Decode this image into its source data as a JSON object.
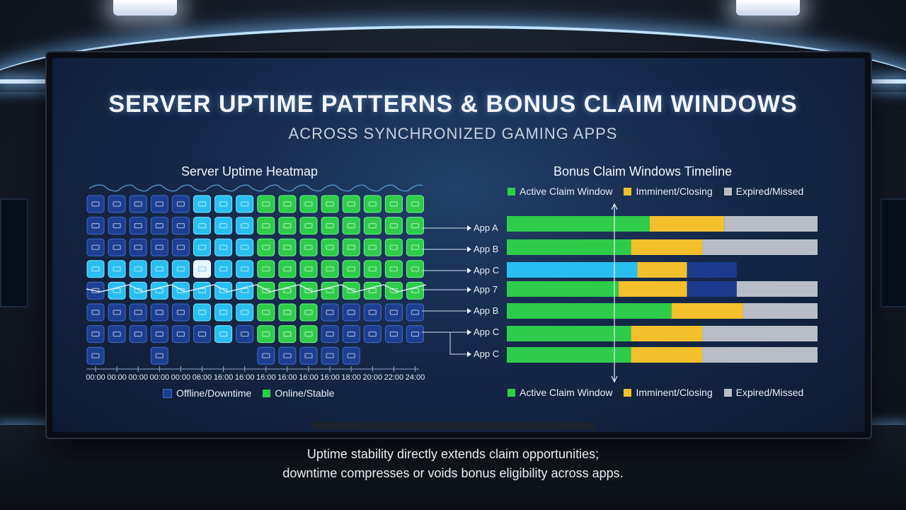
{
  "title": "Server Uptime Patterns & Bonus Claim Windows",
  "subtitle": "Across Synchronized Gaming Apps",
  "caption_line1": "Uptime stability directly extends claim opportunities;",
  "caption_line2": "downtime compresses or voids bonus eligibility across apps.",
  "colors": {
    "online": "#2ecc4a",
    "offline": "#1d3f8f",
    "cyan": "#28bff0",
    "active": "#2ecc4a",
    "imminent": "#f3c02b",
    "expired": "#b9bec6",
    "downtime_band": "#1b3a8e"
  },
  "chart_data": [
    {
      "type": "heatmap",
      "title": "Server Uptime Heatmap",
      "x_tick_labels": [
        "00:00",
        "00:00",
        "00:00",
        "00:00",
        "00:00",
        "06:00",
        "16:00",
        "16:00",
        "16:00",
        "16:00",
        "16:00",
        "16:00",
        "18:00",
        "20:00",
        "22:00",
        "24:00"
      ],
      "cell_legend": [
        "offline",
        "cyan",
        "online"
      ],
      "rows": [
        [
          "offline",
          "offline",
          "offline",
          "offline",
          "offline",
          "cyan",
          "cyan",
          "cyan",
          "online",
          "online",
          "online",
          "online",
          "online",
          "online",
          "online",
          "online"
        ],
        [
          "offline",
          "offline",
          "offline",
          "offline",
          "offline",
          "cyan",
          "cyan",
          "cyan",
          "online",
          "online",
          "online",
          "online",
          "online",
          "online",
          "online",
          "online"
        ],
        [
          "offline",
          "offline",
          "offline",
          "offline",
          "offline",
          "cyan",
          "cyan",
          "cyan",
          "online",
          "online",
          "online",
          "online",
          "online",
          "online",
          "online",
          "online"
        ],
        [
          "cyan",
          "cyan",
          "cyan",
          "cyan",
          "cyan",
          "white",
          "cyan",
          "cyan",
          "online",
          "online",
          "online",
          "online",
          "online",
          "online",
          "online",
          "online"
        ],
        [
          "offline",
          "cyan",
          "cyan",
          "cyan",
          "cyan",
          "cyan",
          "cyan",
          "cyan",
          "online",
          "online",
          "online",
          "online",
          "online",
          "online",
          "online",
          "online"
        ],
        [
          "offline",
          "offline",
          "offline",
          "offline",
          "offline",
          "cyan",
          "cyan",
          "cyan",
          "online",
          "online",
          "online",
          "offline",
          "offline",
          "offline",
          "offline",
          "offline"
        ],
        [
          "offline",
          "offline",
          "offline",
          "offline",
          "offline",
          "offline",
          "cyan",
          "offline",
          "online",
          "online",
          "online",
          "offline",
          "offline",
          "offline",
          "offline",
          "offline"
        ],
        [
          "offline",
          "",
          "",
          "offline",
          "",
          "",
          "",
          "",
          "offline",
          "offline",
          "offline",
          "offline",
          "offline",
          "",
          "",
          ""
        ]
      ],
      "legend": [
        {
          "label": "Offline/Downtime",
          "color": "#1d3f8f"
        },
        {
          "label": "Online/Stable",
          "color": "#2ecc4a"
        }
      ]
    },
    {
      "type": "bar",
      "title": "Bonus Claim Windows Timeline",
      "categories": [
        "App A",
        "App B",
        "App C",
        "App 7",
        "App B",
        "App C",
        "App C"
      ],
      "segments": [
        [
          {
            "k": "active",
            "v": 46
          },
          {
            "k": "imminent",
            "v": 24
          },
          {
            "k": "expired",
            "v": 30
          }
        ],
        [
          {
            "k": "active",
            "v": 40
          },
          {
            "k": "imminent",
            "v": 23
          },
          {
            "k": "expired",
            "v": 37
          }
        ],
        [
          {
            "k": "cyan",
            "v": 42
          },
          {
            "k": "imminent",
            "v": 16
          },
          {
            "k": "downtime_band",
            "v": 16
          }
        ],
        [
          {
            "k": "active",
            "v": 36
          },
          {
            "k": "imminent",
            "v": 22
          },
          {
            "k": "downtime_band",
            "v": 16
          },
          {
            "k": "expired",
            "v": 26
          }
        ],
        [
          {
            "k": "active",
            "v": 53
          },
          {
            "k": "imminent",
            "v": 23
          },
          {
            "k": "expired",
            "v": 24
          }
        ],
        [
          {
            "k": "active",
            "v": 40
          },
          {
            "k": "imminent",
            "v": 23
          },
          {
            "k": "expired",
            "v": 37
          }
        ],
        [
          {
            "k": "active",
            "v": 40
          },
          {
            "k": "imminent",
            "v": 23
          },
          {
            "k": "expired",
            "v": 37
          }
        ]
      ],
      "legend": [
        {
          "label": "Active Claim Window",
          "color": "#2ecc4a"
        },
        {
          "label": "Imminent/Closing",
          "color": "#f3c02b"
        },
        {
          "label": "Expired/Missed",
          "color": "#b9bec6"
        }
      ]
    }
  ]
}
